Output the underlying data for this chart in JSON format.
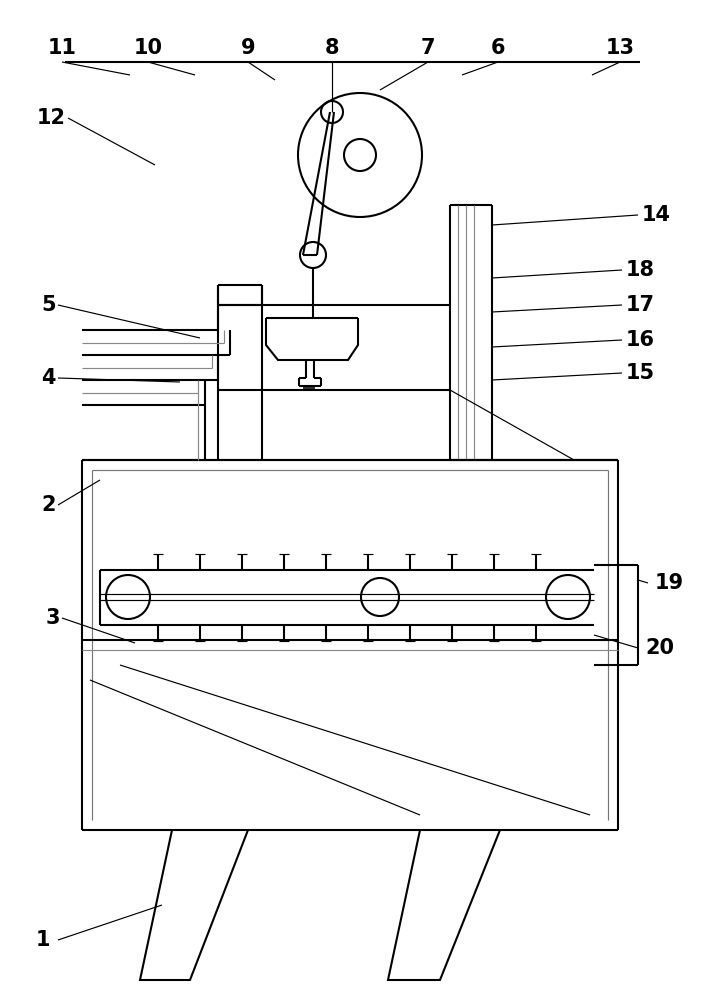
{
  "bg": "#ffffff",
  "lc": "#000000",
  "lw": 1.5,
  "tlw": 0.85,
  "fs": 15,
  "fig_w": 7.04,
  "fig_h": 10.0,
  "dpi": 100,
  "gray": "#888888"
}
